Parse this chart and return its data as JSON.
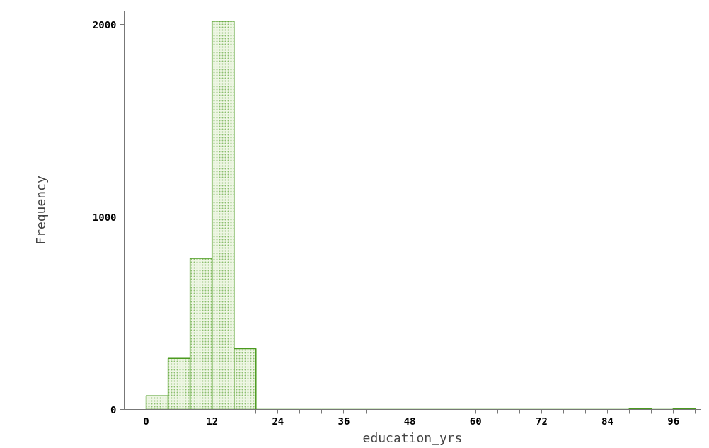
{
  "chart_data": {
    "type": "histogram",
    "xlabel": "education_yrs",
    "ylabel": "Frequency",
    "bins": [
      0,
      4,
      8,
      12,
      16,
      20,
      24,
      28,
      32,
      36,
      40,
      44,
      48,
      52,
      56,
      60,
      64,
      68,
      72,
      76,
      80,
      84,
      88,
      92,
      96,
      100
    ],
    "values": [
      71,
      266,
      785,
      2018,
      316,
      0,
      0,
      0,
      0,
      0,
      0,
      0,
      0,
      0,
      0,
      0,
      0,
      0,
      0,
      0,
      0,
      0,
      5,
      0,
      5
    ],
    "color": "#4a9a1e",
    "xlim": [
      -4,
      101
    ],
    "ylim": [
      0,
      2070
    ],
    "xticks": [
      0,
      {
        "value": 4,
        "label": null
      },
      {
        "value": 8,
        "label": null
      },
      12,
      {
        "value": 16,
        "label": null
      },
      {
        "value": 20,
        "label": null
      },
      24,
      {
        "value": 28,
        "label": null
      },
      {
        "value": 32,
        "label": null
      },
      36,
      {
        "value": 40,
        "label": null
      },
      {
        "value": 44,
        "label": null
      },
      48,
      {
        "value": 52,
        "label": null
      },
      {
        "value": 56,
        "label": null
      },
      60,
      {
        "value": 64,
        "label": null
      },
      {
        "value": 68,
        "label": null
      },
      72,
      {
        "value": 76,
        "label": null
      },
      {
        "value": 80,
        "label": null
      },
      84,
      {
        "value": 88,
        "label": null
      },
      {
        "value": 92,
        "label": null
      },
      96,
      {
        "value": 100,
        "label": null
      }
    ],
    "yticks": [
      0,
      1000,
      2000
    ],
    "grid": false
  }
}
